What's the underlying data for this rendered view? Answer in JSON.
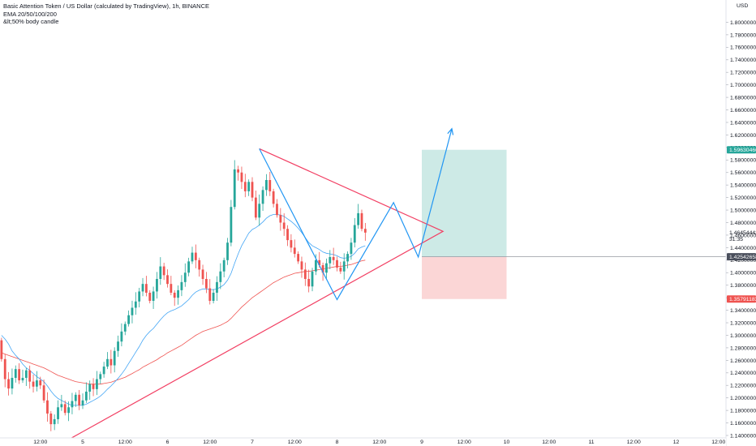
{
  "legend": {
    "title": "Basic Attention Token / US Dollar (calculated by TradingView), 1h, BINANCE",
    "indicator": "EMA 20/50/100/200",
    "note": "&lt;50% body candle"
  },
  "chart_data": {
    "type": "candlestick",
    "currency": "USD",
    "ylim": [
      1.14,
      1.82
    ],
    "yticks": [
      "1.80000000",
      "1.78000000",
      "1.76000000",
      "1.74000000",
      "1.72000000",
      "1.70000000",
      "1.68000000",
      "1.66000000",
      "1.64000000",
      "1.62000000",
      "1.60000000",
      "1.58000000",
      "1.56000000",
      "1.54000000",
      "1.52000000",
      "1.50000000",
      "1.48000000",
      "1.46000000",
      "1.44000000",
      "1.42000000",
      "1.40000000",
      "1.38000000",
      "1.36000000",
      "1.34000000",
      "1.32000000",
      "1.30000000",
      "1.28000000",
      "1.26000000",
      "1.24000000",
      "1.22000000",
      "1.20000000",
      "1.18000000",
      "1.16000000",
      "1.14000000"
    ],
    "xticks": [
      {
        "label": "12:00",
        "t": -12
      },
      {
        "label": "5",
        "t": 0
      },
      {
        "label": "12:00",
        "t": 12
      },
      {
        "label": "6",
        "t": 24
      },
      {
        "label": "12:00",
        "t": 36
      },
      {
        "label": "7",
        "t": 48
      },
      {
        "label": "12:00",
        "t": 60
      },
      {
        "label": "8",
        "t": 72
      },
      {
        "label": "12:00",
        "t": 84
      },
      {
        "label": "9",
        "t": 96
      },
      {
        "label": "12:00",
        "t": 108
      },
      {
        "label": "10",
        "t": 120
      },
      {
        "label": "12:00",
        "t": 132
      },
      {
        "label": "11",
        "t": 144
      },
      {
        "label": "12:00",
        "t": 156
      },
      {
        "label": "12",
        "t": 168
      },
      {
        "label": "12:00",
        "t": 180
      }
    ],
    "price_tags": [
      {
        "label": "1.59630466",
        "value": 1.5963,
        "color": "#26a69a"
      },
      {
        "label": "1.46454442",
        "value": 1.4645,
        "color": "#ffffff",
        "text_color": "#131722",
        "sub": "31:35"
      },
      {
        "label": "1.42542658",
        "value": 1.4254,
        "color": "#4a4f5c"
      },
      {
        "label": "1.35791183",
        "value": 1.3579,
        "color": "#ef5350"
      }
    ],
    "start_price": 1.292,
    "closes": [
      1.262,
      1.23,
      1.215,
      1.232,
      1.246,
      1.228,
      1.232,
      1.244,
      1.226,
      1.218,
      1.228,
      1.22,
      1.196,
      1.175,
      1.158,
      1.166,
      1.185,
      1.19,
      1.176,
      1.185,
      1.195,
      1.205,
      1.188,
      1.196,
      1.21,
      1.222,
      1.214,
      1.23,
      1.238,
      1.25,
      1.262,
      1.252,
      1.275,
      1.29,
      1.306,
      1.318,
      1.332,
      1.344,
      1.354,
      1.37,
      1.382,
      1.368,
      1.355,
      1.37,
      1.39,
      1.41,
      1.396,
      1.382,
      1.368,
      1.36,
      1.372,
      1.385,
      1.4,
      1.418,
      1.432,
      1.42,
      1.405,
      1.39,
      1.375,
      1.355,
      1.368,
      1.385,
      1.402,
      1.42,
      1.448,
      1.505,
      1.565,
      1.56,
      1.545,
      1.53,
      1.545,
      1.52,
      1.488,
      1.51,
      1.532,
      1.548,
      1.53,
      1.51,
      1.492,
      1.48,
      1.47,
      1.452,
      1.44,
      1.43,
      1.418,
      1.405,
      1.39,
      1.378,
      1.402,
      1.42,
      1.412,
      1.4,
      1.415,
      1.425,
      1.42,
      1.408,
      1.402,
      1.418,
      1.43,
      1.448,
      1.476,
      1.495,
      1.47,
      1.464
    ],
    "ema_fast": [
      1.3,
      1.294,
      1.286,
      1.275,
      1.268,
      1.262,
      1.254,
      1.248,
      1.244,
      1.239,
      1.234,
      1.23,
      1.226,
      1.219,
      1.211,
      1.204,
      1.199,
      1.196,
      1.193,
      1.19,
      1.188,
      1.188,
      1.188,
      1.188,
      1.19,
      1.193,
      1.196,
      1.199,
      1.203,
      1.208,
      1.214,
      1.219,
      1.225,
      1.231,
      1.238,
      1.246,
      1.255,
      1.264,
      1.273,
      1.282,
      1.292,
      1.3,
      1.306,
      1.311,
      1.318,
      1.325,
      1.331,
      1.336,
      1.339,
      1.341,
      1.344,
      1.347,
      1.352,
      1.357,
      1.364,
      1.369,
      1.372,
      1.374,
      1.374,
      1.373,
      1.373,
      1.374,
      1.377,
      1.381,
      1.388,
      1.399,
      1.415,
      1.43,
      1.443,
      1.453,
      1.463,
      1.469,
      1.472,
      1.476,
      1.481,
      1.487,
      1.491,
      1.493,
      1.493,
      1.492,
      1.49,
      1.486,
      1.482,
      1.477,
      1.471,
      1.464,
      1.456,
      1.448,
      1.443,
      1.44,
      1.437,
      1.433,
      1.431,
      1.43,
      1.429,
      1.427,
      1.424,
      1.423,
      1.424,
      1.426,
      1.431,
      1.438,
      1.441,
      1.443
    ],
    "ema_slow": [
      1.272,
      1.27,
      1.268,
      1.266,
      1.264,
      1.262,
      1.26,
      1.258,
      1.256,
      1.254,
      1.252,
      1.25,
      1.248,
      1.245,
      1.242,
      1.239,
      1.236,
      1.234,
      1.232,
      1.23,
      1.228,
      1.226,
      1.225,
      1.224,
      1.223,
      1.222,
      1.222,
      1.222,
      1.222,
      1.223,
      1.224,
      1.225,
      1.227,
      1.229,
      1.231,
      1.233,
      1.236,
      1.239,
      1.242,
      1.245,
      1.249,
      1.252,
      1.255,
      1.258,
      1.261,
      1.265,
      1.268,
      1.272,
      1.275,
      1.278,
      1.281,
      1.284,
      1.288,
      1.292,
      1.296,
      1.3,
      1.303,
      1.306,
      1.308,
      1.31,
      1.312,
      1.314,
      1.316,
      1.319,
      1.322,
      1.327,
      1.333,
      1.339,
      1.345,
      1.35,
      1.355,
      1.36,
      1.364,
      1.368,
      1.372,
      1.376,
      1.38,
      1.384,
      1.387,
      1.39,
      1.393,
      1.395,
      1.397,
      1.399,
      1.4,
      1.401,
      1.402,
      1.402,
      1.403,
      1.404,
      1.405,
      1.406,
      1.407,
      1.408,
      1.409,
      1.41,
      1.41,
      1.411,
      1.412,
      1.413,
      1.415,
      1.417,
      1.419,
      1.42
    ],
    "triangle": {
      "color": "#f23f63",
      "apex": {
        "t": 102,
        "p": 1.466
      },
      "upper_start": {
        "t": 50,
        "p": 1.598
      },
      "lower_start": {
        "t": 0,
        "p": 1.146
      }
    },
    "projection_path": {
      "color": "#2196f3",
      "points": [
        {
          "t": 50,
          "p": 1.598
        },
        {
          "t": 72,
          "p": 1.357
        },
        {
          "t": 88,
          "p": 1.512
        },
        {
          "t": 95,
          "p": 1.425
        },
        {
          "t": 104.5,
          "p": 1.63
        }
      ]
    },
    "position": {
      "entry": 1.4254,
      "target": 1.5963,
      "stop": 1.3579,
      "t_start": 96,
      "t_end": 120,
      "profit_color": "#cdeae6",
      "loss_color": "#fbd6d6"
    }
  }
}
